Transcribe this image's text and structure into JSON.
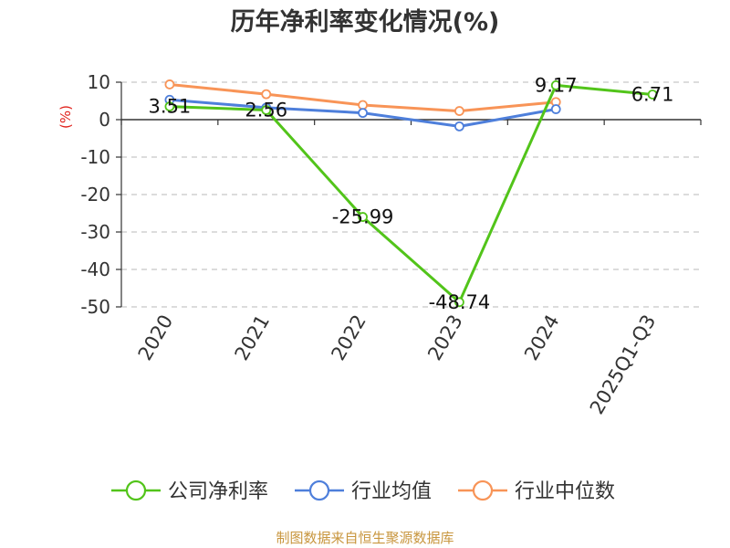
{
  "chart_data": {
    "type": "line",
    "title": "历年净利率变化情况(%)",
    "ylabel": "(%)",
    "categories": [
      "2020",
      "2021",
      "2022",
      "2023",
      "2024",
      "2025Q1-Q3"
    ],
    "ylim": [
      -50,
      10
    ],
    "yticks": [
      10,
      0,
      -10,
      -20,
      -30,
      -40,
      -50
    ],
    "grid": true,
    "legend_position": "bottom",
    "series": [
      {
        "name": "公司净利率",
        "color": "#52c41a",
        "values": [
          3.51,
          2.56,
          -25.99,
          -48.74,
          9.17,
          6.71
        ],
        "labels": [
          "3.51",
          "2.56",
          "-25.99",
          "-48.74",
          "9.17",
          "6.71"
        ]
      },
      {
        "name": "行业均值",
        "color": "#4e7fdb",
        "values": [
          5.3,
          3.2,
          1.8,
          -1.8,
          2.8,
          null
        ]
      },
      {
        "name": "行业中位数",
        "color": "#f89457",
        "values": [
          9.4,
          6.8,
          3.9,
          2.3,
          4.7,
          null
        ]
      }
    ]
  },
  "source": "制图数据来自恒生聚源数据库"
}
